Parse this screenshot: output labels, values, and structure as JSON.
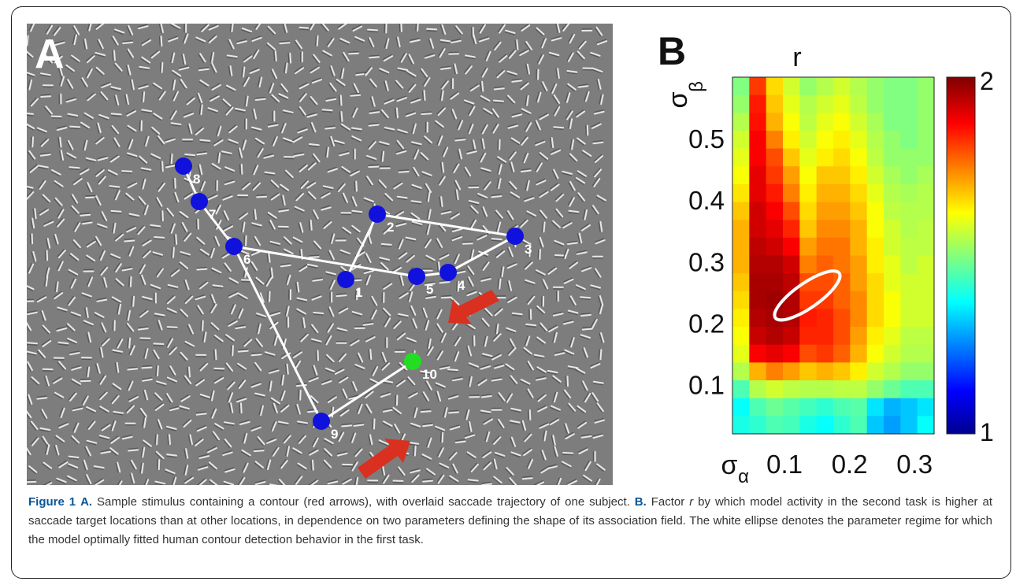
{
  "panel_a": {
    "label": "A",
    "fixations": [
      {
        "n": "1",
        "x": 405,
        "y": 325
      },
      {
        "n": "2",
        "x": 445,
        "y": 242
      },
      {
        "n": "3",
        "x": 620,
        "y": 270
      },
      {
        "n": "4",
        "x": 535,
        "y": 316
      },
      {
        "n": "5",
        "x": 495,
        "y": 321
      },
      {
        "n": "6",
        "x": 263,
        "y": 283
      },
      {
        "n": "7",
        "x": 219,
        "y": 226
      },
      {
        "n": "8",
        "x": 199,
        "y": 181
      },
      {
        "n": "9",
        "x": 374,
        "y": 505
      },
      {
        "n": "10",
        "x": 490,
        "y": 429
      }
    ],
    "fixation_color": "#1111dd",
    "final_fixation_color": "#22dd22",
    "arrow_color": "#d93020"
  },
  "panel_b": {
    "label": "B",
    "colorbar_max": "2",
    "colorbar_min": "1"
  },
  "chart_data": {
    "type": "heatmap",
    "title": "r",
    "xlabel": "σα",
    "ylabel": "σβ",
    "x_ticks": [
      "0.1",
      "0.2",
      "0.3"
    ],
    "y_ticks": [
      "0.1",
      "0.2",
      "0.3",
      "0.4",
      "0.5"
    ],
    "xlim": [
      0.02,
      0.33
    ],
    "ylim": [
      0.02,
      0.6
    ],
    "colorbar_range": [
      1,
      2
    ],
    "colormap": "jet",
    "grid_cols": 12,
    "grid_rows": 20,
    "ellipse": {
      "center_x": 0.135,
      "center_y": 0.245,
      "semi_major": 0.06,
      "semi_minor": 0.02,
      "angle_deg": 35
    },
    "values": [
      [
        1.5,
        1.82,
        1.66,
        1.58,
        1.52,
        1.55,
        1.58,
        1.55,
        1.52,
        1.5,
        1.5,
        1.52
      ],
      [
        1.52,
        1.85,
        1.68,
        1.6,
        1.55,
        1.58,
        1.6,
        1.56,
        1.52,
        1.5,
        1.5,
        1.52
      ],
      [
        1.55,
        1.86,
        1.7,
        1.62,
        1.56,
        1.6,
        1.62,
        1.58,
        1.54,
        1.5,
        1.5,
        1.52
      ],
      [
        1.58,
        1.88,
        1.75,
        1.64,
        1.58,
        1.62,
        1.64,
        1.6,
        1.55,
        1.52,
        1.5,
        1.52
      ],
      [
        1.6,
        1.88,
        1.8,
        1.68,
        1.6,
        1.64,
        1.66,
        1.62,
        1.56,
        1.52,
        1.52,
        1.52
      ],
      [
        1.62,
        1.9,
        1.82,
        1.72,
        1.62,
        1.68,
        1.68,
        1.64,
        1.58,
        1.54,
        1.52,
        1.54
      ],
      [
        1.65,
        1.9,
        1.85,
        1.75,
        1.64,
        1.7,
        1.7,
        1.66,
        1.6,
        1.55,
        1.54,
        1.55
      ],
      [
        1.68,
        1.92,
        1.88,
        1.8,
        1.66,
        1.72,
        1.72,
        1.68,
        1.62,
        1.56,
        1.55,
        1.55
      ],
      [
        1.7,
        1.92,
        1.9,
        1.84,
        1.68,
        1.74,
        1.74,
        1.7,
        1.62,
        1.58,
        1.55,
        1.56
      ],
      [
        1.7,
        1.94,
        1.92,
        1.88,
        1.72,
        1.76,
        1.76,
        1.7,
        1.64,
        1.58,
        1.56,
        1.56
      ],
      [
        1.7,
        1.95,
        1.95,
        1.92,
        1.75,
        1.78,
        1.76,
        1.72,
        1.64,
        1.6,
        1.56,
        1.58
      ],
      [
        1.68,
        1.96,
        1.96,
        1.94,
        1.8,
        1.8,
        1.78,
        1.72,
        1.66,
        1.6,
        1.58,
        1.58
      ],
      [
        1.66,
        1.96,
        1.97,
        1.95,
        1.82,
        1.82,
        1.78,
        1.74,
        1.66,
        1.62,
        1.58,
        1.58
      ],
      [
        1.64,
        1.95,
        1.96,
        1.95,
        1.85,
        1.84,
        1.8,
        1.74,
        1.66,
        1.62,
        1.58,
        1.58
      ],
      [
        1.62,
        1.93,
        1.95,
        1.93,
        1.84,
        1.84,
        1.8,
        1.72,
        1.64,
        1.6,
        1.56,
        1.56
      ],
      [
        1.6,
        1.88,
        1.9,
        1.88,
        1.8,
        1.82,
        1.78,
        1.7,
        1.62,
        1.58,
        1.55,
        1.55
      ],
      [
        1.55,
        1.7,
        1.75,
        1.72,
        1.68,
        1.7,
        1.68,
        1.64,
        1.58,
        1.55,
        1.52,
        1.52
      ],
      [
        1.45,
        1.55,
        1.58,
        1.56,
        1.55,
        1.55,
        1.56,
        1.56,
        1.52,
        1.48,
        1.45,
        1.45
      ],
      [
        1.38,
        1.45,
        1.48,
        1.46,
        1.44,
        1.42,
        1.45,
        1.46,
        1.35,
        1.3,
        1.32,
        1.35
      ],
      [
        1.4,
        1.42,
        1.45,
        1.44,
        1.4,
        1.38,
        1.42,
        1.45,
        1.32,
        1.28,
        1.32,
        1.38
      ]
    ]
  },
  "caption": {
    "figure_label": "Figure 1",
    "a_label": "A.",
    "a_text": "Sample stimulus containing a contour (red arrows), with overlaid saccade trajectory of one subject.",
    "b_label": "B.",
    "b_text_pre": "Factor",
    "b_text_var": "r",
    "b_text_post": "by which model activity in the second task is higher at saccade target locations than at other locations, in dependence on two parameters defining the shape of its association field. The white ellipse denotes the parameter regime for which the model optimally fitted human contour detection behavior in the first task."
  }
}
